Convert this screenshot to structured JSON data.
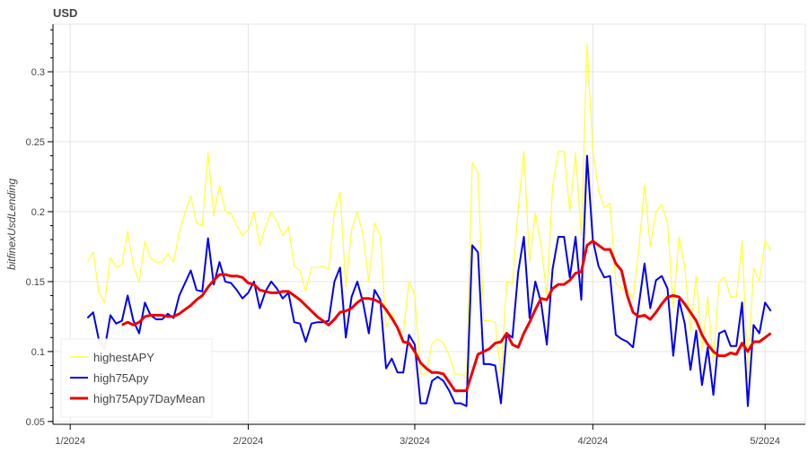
{
  "chart_data": {
    "type": "line",
    "title": "USD",
    "xlabel": "",
    "ylabel": "bitfinexUsdLending",
    "xlim": [
      "2023-12-29",
      "2024-05-08"
    ],
    "ylim": [
      0.048,
      0.334
    ],
    "grid": true,
    "legend_position": "bottom-left",
    "x_ticks": [
      {
        "date": "2024-01-01",
        "label": "1/2024"
      },
      {
        "date": "2024-02-01",
        "label": "2/2024"
      },
      {
        "date": "2024-03-01",
        "label": "3/2024"
      },
      {
        "date": "2024-04-01",
        "label": "4/2024"
      },
      {
        "date": "2024-05-01",
        "label": "5/2024"
      }
    ],
    "y_ticks": [
      {
        "value": 0.05,
        "label": "0.05"
      },
      {
        "value": 0.1,
        "label": "0.1"
      },
      {
        "value": 0.15,
        "label": "0.15"
      },
      {
        "value": 0.2,
        "label": "0.2"
      },
      {
        "value": 0.25,
        "label": "0.25"
      },
      {
        "value": 0.3,
        "label": "0.3"
      }
    ],
    "x": [
      "2024-01-04",
      "2024-01-05",
      "2024-01-06",
      "2024-01-07",
      "2024-01-08",
      "2024-01-09",
      "2024-01-10",
      "2024-01-11",
      "2024-01-12",
      "2024-01-13",
      "2024-01-14",
      "2024-01-15",
      "2024-01-16",
      "2024-01-17",
      "2024-01-18",
      "2024-01-19",
      "2024-01-20",
      "2024-01-21",
      "2024-01-22",
      "2024-01-23",
      "2024-01-24",
      "2024-01-25",
      "2024-01-26",
      "2024-01-27",
      "2024-01-28",
      "2024-01-29",
      "2024-01-30",
      "2024-01-31",
      "2024-02-01",
      "2024-02-02",
      "2024-02-03",
      "2024-02-04",
      "2024-02-05",
      "2024-02-06",
      "2024-02-07",
      "2024-02-08",
      "2024-02-09",
      "2024-02-10",
      "2024-02-11",
      "2024-02-12",
      "2024-02-13",
      "2024-02-14",
      "2024-02-15",
      "2024-02-16",
      "2024-02-17",
      "2024-02-18",
      "2024-02-19",
      "2024-02-20",
      "2024-02-21",
      "2024-02-22",
      "2024-02-23",
      "2024-02-24",
      "2024-02-25",
      "2024-02-26",
      "2024-02-27",
      "2024-02-28",
      "2024-02-29",
      "2024-03-01",
      "2024-03-02",
      "2024-03-03",
      "2024-03-04",
      "2024-03-05",
      "2024-03-06",
      "2024-03-07",
      "2024-03-08",
      "2024-03-09",
      "2024-03-10",
      "2024-03-11",
      "2024-03-12",
      "2024-03-13",
      "2024-03-14",
      "2024-03-15",
      "2024-03-16",
      "2024-03-17",
      "2024-03-18",
      "2024-03-19",
      "2024-03-20",
      "2024-03-21",
      "2024-03-22",
      "2024-03-23",
      "2024-03-24",
      "2024-03-25",
      "2024-03-26",
      "2024-03-27",
      "2024-03-28",
      "2024-03-29",
      "2024-03-30",
      "2024-03-31",
      "2024-04-01",
      "2024-04-02",
      "2024-04-03",
      "2024-04-04",
      "2024-04-05",
      "2024-04-06",
      "2024-04-07",
      "2024-04-08",
      "2024-04-09",
      "2024-04-10",
      "2024-04-11",
      "2024-04-12",
      "2024-04-13",
      "2024-04-14",
      "2024-04-15",
      "2024-04-16",
      "2024-04-17",
      "2024-04-18",
      "2024-04-19",
      "2024-04-20",
      "2024-04-21",
      "2024-04-22",
      "2024-04-23",
      "2024-04-24",
      "2024-04-25",
      "2024-04-26",
      "2024-04-27",
      "2024-04-28",
      "2024-04-29",
      "2024-04-30",
      "2024-05-01",
      "2024-05-02"
    ],
    "series": [
      {
        "name": "highestAPY",
        "color": "#ffff33",
        "values": [
          0.164,
          0.171,
          0.142,
          0.135,
          0.167,
          0.16,
          0.162,
          0.186,
          0.161,
          0.15,
          0.179,
          0.167,
          0.164,
          0.164,
          0.17,
          0.164,
          0.185,
          0.2,
          0.211,
          0.192,
          0.19,
          0.242,
          0.197,
          0.219,
          0.2,
          0.199,
          0.19,
          0.183,
          0.187,
          0.2,
          0.176,
          0.189,
          0.2,
          0.193,
          0.183,
          0.189,
          0.161,
          0.158,
          0.143,
          0.16,
          0.16,
          0.161,
          0.159,
          0.2,
          0.214,
          0.146,
          0.187,
          0.2,
          0.183,
          0.15,
          0.192,
          0.183,
          0.117,
          0.128,
          0.116,
          0.114,
          0.15,
          0.141,
          0.084,
          0.084,
          0.106,
          0.109,
          0.106,
          0.097,
          0.084,
          0.084,
          0.081,
          0.235,
          0.228,
          0.122,
          0.122,
          0.121,
          0.084,
          0.15,
          0.148,
          0.202,
          0.243,
          0.164,
          0.199,
          0.176,
          0.14,
          0.218,
          0.243,
          0.243,
          0.2,
          0.242,
          0.183,
          0.32,
          0.244,
          0.215,
          0.203,
          0.206,
          0.149,
          0.145,
          0.144,
          0.138,
          0.173,
          0.219,
          0.175,
          0.2,
          0.205,
          0.192,
          0.131,
          0.182,
          0.161,
          0.115,
          0.154,
          0.101,
          0.139,
          0.092,
          0.15,
          0.153,
          0.139,
          0.139,
          0.179,
          0.084,
          0.16,
          0.15,
          0.179,
          0.172
        ]
      },
      {
        "name": "high75Apy",
        "color": "#0000ee",
        "values": [
          0.124,
          0.128,
          0.108,
          0.102,
          0.126,
          0.12,
          0.122,
          0.14,
          0.122,
          0.113,
          0.135,
          0.126,
          0.123,
          0.123,
          0.127,
          0.124,
          0.14,
          0.149,
          0.158,
          0.144,
          0.143,
          0.181,
          0.148,
          0.164,
          0.15,
          0.149,
          0.144,
          0.138,
          0.142,
          0.15,
          0.131,
          0.143,
          0.15,
          0.145,
          0.138,
          0.142,
          0.121,
          0.12,
          0.107,
          0.12,
          0.121,
          0.121,
          0.122,
          0.15,
          0.16,
          0.11,
          0.139,
          0.15,
          0.135,
          0.113,
          0.144,
          0.137,
          0.088,
          0.095,
          0.085,
          0.085,
          0.112,
          0.105,
          0.063,
          0.063,
          0.079,
          0.082,
          0.079,
          0.072,
          0.063,
          0.063,
          0.061,
          0.176,
          0.171,
          0.091,
          0.091,
          0.09,
          0.063,
          0.113,
          0.11,
          0.157,
          0.182,
          0.124,
          0.15,
          0.135,
          0.105,
          0.159,
          0.182,
          0.182,
          0.153,
          0.182,
          0.137,
          0.24,
          0.18,
          0.161,
          0.153,
          0.154,
          0.112,
          0.109,
          0.107,
          0.103,
          0.133,
          0.163,
          0.131,
          0.151,
          0.154,
          0.145,
          0.097,
          0.137,
          0.12,
          0.087,
          0.115,
          0.076,
          0.103,
          0.069,
          0.113,
          0.115,
          0.104,
          0.104,
          0.135,
          0.061,
          0.119,
          0.113,
          0.135,
          0.129
        ]
      },
      {
        "name": "high75Apy7DayMean",
        "color": "#ee0000",
        "values": [
          null,
          null,
          null,
          null,
          null,
          null,
          0.119,
          0.121,
          0.119,
          0.121,
          0.125,
          0.126,
          0.126,
          0.126,
          0.125,
          0.125,
          0.127,
          0.13,
          0.133,
          0.137,
          0.14,
          0.146,
          0.151,
          0.155,
          0.155,
          0.154,
          0.154,
          0.153,
          0.149,
          0.148,
          0.144,
          0.143,
          0.142,
          0.142,
          0.143,
          0.143,
          0.14,
          0.137,
          0.133,
          0.129,
          0.125,
          0.122,
          0.119,
          0.123,
          0.128,
          0.129,
          0.131,
          0.135,
          0.138,
          0.138,
          0.137,
          0.135,
          0.13,
          0.124,
          0.117,
          0.107,
          0.106,
          0.1,
          0.092,
          0.088,
          0.085,
          0.085,
          0.084,
          0.078,
          0.072,
          0.072,
          0.072,
          0.085,
          0.098,
          0.1,
          0.102,
          0.106,
          0.107,
          0.113,
          0.105,
          0.103,
          0.113,
          0.121,
          0.13,
          0.138,
          0.137,
          0.145,
          0.148,
          0.148,
          0.151,
          0.156,
          0.157,
          0.176,
          0.179,
          0.176,
          0.173,
          0.173,
          0.163,
          0.158,
          0.14,
          0.128,
          0.125,
          0.126,
          0.123,
          0.128,
          0.134,
          0.139,
          0.14,
          0.139,
          0.134,
          0.128,
          0.122,
          0.112,
          0.105,
          0.1,
          0.097,
          0.097,
          0.099,
          0.098,
          0.106,
          0.1,
          0.107,
          0.107,
          0.11,
          0.113
        ]
      }
    ]
  }
}
